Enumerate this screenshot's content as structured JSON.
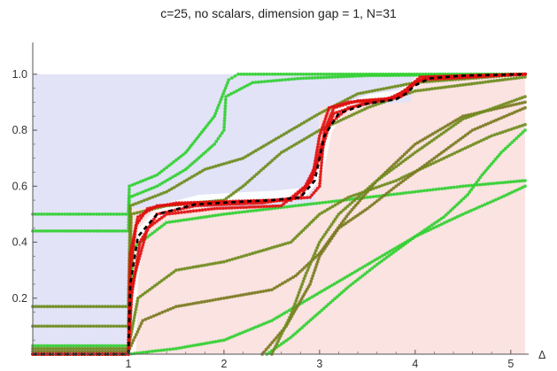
{
  "chart_data": {
    "type": "line",
    "title": "c=25, no scalars, dimension gap = 1, N=31",
    "xlabel": "Δ",
    "ylabel": "",
    "xlim": [
      0,
      5.15
    ],
    "ylim": [
      0,
      1.05
    ],
    "x_ticks": [
      "1",
      "2",
      "3",
      "4",
      "5"
    ],
    "y_ticks": [
      "0.2",
      "0.4",
      "0.6",
      "0.8",
      "1.0"
    ],
    "background_regions": [
      {
        "name": "upper-left region",
        "color": "#e2e3f7",
        "x_range": [
          0,
          1
        ],
        "y_range": [
          0,
          1
        ]
      },
      {
        "name": "lower-right region",
        "color": "#fae3e1",
        "x_range": [
          1,
          5.15
        ],
        "y_range": [
          0,
          1
        ]
      },
      {
        "name": "staircase boundary upper",
        "color": "#e2e3f7"
      }
    ],
    "colors": {
      "bright_green": "#33d033",
      "olive_green": "#6e8c1e",
      "dark_olive": "#7a7a22",
      "red": "#e01010",
      "dashed_black": "#000000"
    },
    "series": [
      {
        "color": "bright_green",
        "style": "dots",
        "points": [
          [
            0,
            0.5
          ],
          [
            1,
            0.5
          ],
          [
            1.01,
            0.6
          ],
          [
            1.3,
            0.64
          ],
          [
            1.6,
            0.72
          ],
          [
            1.9,
            0.85
          ],
          [
            2.05,
            0.98
          ],
          [
            2.15,
            1.0
          ],
          [
            5.15,
            1.0
          ]
        ]
      },
      {
        "color": "bright_green",
        "style": "dots",
        "points": [
          [
            0,
            0.44
          ],
          [
            1,
            0.44
          ],
          [
            1.01,
            0.56
          ],
          [
            1.3,
            0.6
          ],
          [
            1.6,
            0.66
          ],
          [
            1.9,
            0.75
          ],
          [
            2.0,
            0.8
          ],
          [
            2.02,
            0.92
          ],
          [
            2.3,
            0.97
          ],
          [
            2.8,
            0.985
          ],
          [
            3.5,
            0.995
          ],
          [
            5.15,
            1.0
          ]
        ]
      },
      {
        "color": "olive_green",
        "style": "dots",
        "points": [
          [
            0,
            0.17
          ],
          [
            1,
            0.17
          ],
          [
            1.02,
            0.53
          ],
          [
            1.4,
            0.58
          ],
          [
            1.8,
            0.66
          ],
          [
            2.0,
            0.68
          ],
          [
            2.2,
            0.7
          ],
          [
            2.6,
            0.78
          ],
          [
            3.0,
            0.86
          ],
          [
            3.4,
            0.93
          ],
          [
            4.0,
            0.97
          ],
          [
            5.15,
            1.0
          ]
        ]
      },
      {
        "color": "olive_green",
        "style": "dots",
        "points": [
          [
            0,
            0.1
          ],
          [
            1,
            0.1
          ],
          [
            1.03,
            0.5
          ],
          [
            1.4,
            0.53
          ],
          [
            2.0,
            0.55
          ],
          [
            2.2,
            0.6
          ],
          [
            2.6,
            0.72
          ],
          [
            3.0,
            0.8
          ],
          [
            3.5,
            0.88
          ],
          [
            4.0,
            0.94
          ],
          [
            5.15,
            0.99
          ]
        ]
      },
      {
        "color": "bright_green",
        "style": "dots",
        "points": [
          [
            0,
            0.03
          ],
          [
            1,
            0.03
          ],
          [
            1.05,
            0.38
          ],
          [
            1.4,
            0.47
          ],
          [
            2.0,
            0.5
          ],
          [
            2.5,
            0.52
          ],
          [
            3.0,
            0.54
          ],
          [
            3.5,
            0.56
          ],
          [
            4.0,
            0.58
          ],
          [
            4.5,
            0.6
          ],
          [
            5.15,
            0.62
          ]
        ]
      },
      {
        "color": "olive_green",
        "style": "dots",
        "points": [
          [
            0,
            0.02
          ],
          [
            1,
            0.02
          ],
          [
            1.1,
            0.2
          ],
          [
            1.5,
            0.3
          ],
          [
            2.0,
            0.33
          ],
          [
            2.3,
            0.36
          ],
          [
            2.7,
            0.4
          ],
          [
            3.0,
            0.5
          ],
          [
            3.3,
            0.56
          ],
          [
            3.8,
            0.62
          ],
          [
            4.3,
            0.7
          ],
          [
            4.8,
            0.78
          ],
          [
            5.15,
            0.82
          ]
        ]
      },
      {
        "color": "dark_olive",
        "style": "dots",
        "points": [
          [
            0,
            0.01
          ],
          [
            1,
            0.01
          ],
          [
            1.15,
            0.12
          ],
          [
            1.5,
            0.17
          ],
          [
            2.0,
            0.2
          ],
          [
            2.5,
            0.23
          ],
          [
            2.75,
            0.28
          ],
          [
            3.0,
            0.36
          ],
          [
            3.3,
            0.5
          ],
          [
            3.6,
            0.62
          ],
          [
            4.0,
            0.75
          ],
          [
            4.5,
            0.85
          ],
          [
            5.15,
            0.9
          ]
        ]
      },
      {
        "color": "bright_green",
        "style": "dots",
        "points": [
          [
            0,
            0.0
          ],
          [
            1,
            0.0
          ],
          [
            1.5,
            0.02
          ],
          [
            2.0,
            0.05
          ],
          [
            2.5,
            0.12
          ],
          [
            3.0,
            0.22
          ],
          [
            3.5,
            0.32
          ],
          [
            4.0,
            0.42
          ],
          [
            4.5,
            0.5
          ],
          [
            4.9,
            0.56
          ],
          [
            5.15,
            0.6
          ]
        ]
      },
      {
        "color": "bright_green",
        "style": "dots",
        "points": [
          [
            2.45,
            0.0
          ],
          [
            2.7,
            0.06
          ],
          [
            3.0,
            0.15
          ],
          [
            3.3,
            0.24
          ],
          [
            3.6,
            0.32
          ],
          [
            4.0,
            0.42
          ],
          [
            4.3,
            0.49
          ],
          [
            4.55,
            0.57
          ],
          [
            4.7,
            0.64
          ],
          [
            4.9,
            0.72
          ],
          [
            5.15,
            0.8
          ]
        ]
      },
      {
        "color": "dark_olive",
        "style": "dots",
        "points": [
          [
            2.4,
            0.0
          ],
          [
            2.65,
            0.1
          ],
          [
            2.9,
            0.25
          ],
          [
            3.0,
            0.35
          ],
          [
            3.2,
            0.45
          ],
          [
            3.5,
            0.52
          ],
          [
            3.8,
            0.6
          ],
          [
            4.2,
            0.7
          ],
          [
            4.6,
            0.8
          ],
          [
            5.15,
            0.88
          ]
        ]
      },
      {
        "color": "olive_green",
        "style": "dots",
        "points": [
          [
            2.5,
            0.0
          ],
          [
            2.7,
            0.14
          ],
          [
            2.85,
            0.28
          ],
          [
            3.0,
            0.4
          ],
          [
            3.2,
            0.5
          ],
          [
            3.6,
            0.62
          ],
          [
            4.0,
            0.72
          ],
          [
            4.5,
            0.84
          ],
          [
            5.15,
            0.92
          ]
        ]
      },
      {
        "color": "red",
        "style": "dots",
        "points": [
          [
            0,
            0.0
          ],
          [
            1,
            0.0
          ],
          [
            1.02,
            0.3
          ],
          [
            1.08,
            0.46
          ],
          [
            1.2,
            0.52
          ],
          [
            1.5,
            0.54
          ],
          [
            2.0,
            0.545
          ],
          [
            2.5,
            0.55
          ],
          [
            2.9,
            0.56
          ],
          [
            3.0,
            0.6
          ],
          [
            3.05,
            0.8
          ],
          [
            3.15,
            0.88
          ],
          [
            3.4,
            0.905
          ],
          [
            3.8,
            0.915
          ],
          [
            3.9,
            0.93
          ],
          [
            4.0,
            0.97
          ],
          [
            4.15,
            0.99
          ],
          [
            5.15,
            1.0
          ]
        ]
      },
      {
        "color": "red",
        "style": "dots",
        "points": [
          [
            0,
            0.0
          ],
          [
            1,
            0.0
          ],
          [
            1.03,
            0.2
          ],
          [
            1.12,
            0.4
          ],
          [
            1.3,
            0.5
          ],
          [
            1.7,
            0.53
          ],
          [
            2.4,
            0.54
          ],
          [
            2.8,
            0.56
          ],
          [
            2.95,
            0.65
          ],
          [
            3.02,
            0.75
          ],
          [
            3.15,
            0.86
          ],
          [
            3.5,
            0.9
          ],
          [
            3.85,
            0.92
          ],
          [
            3.95,
            0.96
          ],
          [
            4.1,
            0.985
          ],
          [
            5.15,
            1.0
          ]
        ]
      },
      {
        "color": "red",
        "style": "dots",
        "points": [
          [
            0,
            0.0
          ],
          [
            1,
            0.0
          ],
          [
            1.04,
            0.25
          ],
          [
            1.2,
            0.45
          ],
          [
            1.4,
            0.5
          ],
          [
            1.9,
            0.52
          ],
          [
            2.6,
            0.53
          ],
          [
            2.85,
            0.6
          ],
          [
            3.0,
            0.7
          ],
          [
            3.1,
            0.82
          ],
          [
            3.3,
            0.88
          ],
          [
            3.7,
            0.91
          ],
          [
            3.9,
            0.94
          ],
          [
            4.05,
            0.98
          ],
          [
            5.15,
            1.0
          ]
        ]
      },
      {
        "color": "red",
        "style": "dots",
        "points": [
          [
            0,
            0.0
          ],
          [
            1,
            0.0
          ],
          [
            1.02,
            0.36
          ],
          [
            1.1,
            0.49
          ],
          [
            1.3,
            0.53
          ],
          [
            1.8,
            0.54
          ],
          [
            2.7,
            0.55
          ],
          [
            2.92,
            0.62
          ],
          [
            3.0,
            0.78
          ],
          [
            3.1,
            0.88
          ],
          [
            3.3,
            0.9
          ],
          [
            3.75,
            0.91
          ],
          [
            3.92,
            0.95
          ],
          [
            4.05,
            0.99
          ],
          [
            5.15,
            1.0
          ]
        ]
      },
      {
        "color": "dashed_black",
        "style": "dashed",
        "points": [
          [
            0,
            0.0
          ],
          [
            1,
            0.0
          ],
          [
            1.02,
            0.25
          ],
          [
            1.1,
            0.42
          ],
          [
            1.3,
            0.5
          ],
          [
            1.7,
            0.535
          ],
          [
            2.2,
            0.545
          ],
          [
            2.5,
            0.55
          ],
          [
            2.8,
            0.56
          ],
          [
            2.95,
            0.62
          ],
          [
            3.05,
            0.78
          ],
          [
            3.2,
            0.86
          ],
          [
            3.5,
            0.895
          ],
          [
            3.8,
            0.91
          ],
          [
            3.9,
            0.93
          ],
          [
            4.0,
            0.96
          ],
          [
            4.15,
            0.985
          ],
          [
            4.5,
            0.995
          ],
          [
            5.15,
            1.0
          ]
        ]
      }
    ]
  }
}
